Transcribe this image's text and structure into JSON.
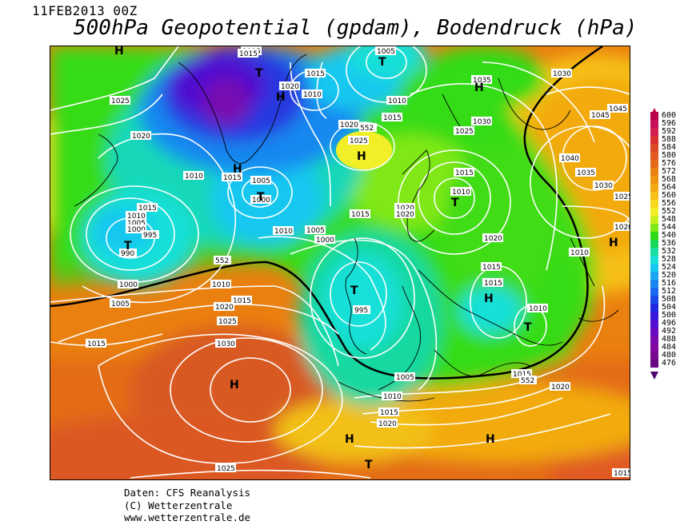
{
  "header": {
    "datetime": "11FEB2013 00Z",
    "title": "500hPa Geopotential (gpdam), Bodendruck (hPa)"
  },
  "credits": {
    "line1": "Daten: CFS Reanalysis",
    "line2": "(C) Wetterzentrale",
    "line3": "www.wetterzentrale.de"
  },
  "legend": {
    "levels": [
      {
        "value": "600",
        "color": "#b8004a"
      },
      {
        "value": "596",
        "color": "#c8105a"
      },
      {
        "value": "592",
        "color": "#d02050"
      },
      {
        "value": "588",
        "color": "#d83030"
      },
      {
        "value": "584",
        "color": "#dc4828"
      },
      {
        "value": "580",
        "color": "#e05a20"
      },
      {
        "value": "576",
        "color": "#e46c18"
      },
      {
        "value": "572",
        "color": "#ea8010"
      },
      {
        "value": "568",
        "color": "#ee9410"
      },
      {
        "value": "564",
        "color": "#f2aa10"
      },
      {
        "value": "560",
        "color": "#f6c018"
      },
      {
        "value": "556",
        "color": "#f6d820"
      },
      {
        "value": "552",
        "color": "#f2ee28"
      },
      {
        "value": "548",
        "color": "#c8f020"
      },
      {
        "value": "544",
        "color": "#80e818"
      },
      {
        "value": "540",
        "color": "#30dc18"
      },
      {
        "value": "536",
        "color": "#18d858"
      },
      {
        "value": "532",
        "color": "#18e0a0"
      },
      {
        "value": "528",
        "color": "#18e0d8"
      },
      {
        "value": "524",
        "color": "#18c8f0"
      },
      {
        "value": "520",
        "color": "#18a8f0"
      },
      {
        "value": "516",
        "color": "#1888f0"
      },
      {
        "value": "512",
        "color": "#1868f0"
      },
      {
        "value": "508",
        "color": "#1848e8"
      },
      {
        "value": "504",
        "color": "#2028e0"
      },
      {
        "value": "500",
        "color": "#3818d8"
      },
      {
        "value": "496",
        "color": "#5010d0"
      },
      {
        "value": "492",
        "color": "#6808c0"
      },
      {
        "value": "488",
        "color": "#7808b0"
      },
      {
        "value": "484",
        "color": "#8008a0"
      },
      {
        "value": "480",
        "color": "#780890"
      },
      {
        "value": "476",
        "color": "#680880"
      }
    ]
  },
  "map": {
    "pressure_systems": [
      {
        "type": "H",
        "name": "high-label"
      },
      {
        "type": "T",
        "name": "low-label"
      }
    ],
    "isobar_labels": [
      "1015",
      "1015",
      "1005",
      "1025",
      "1020",
      "1010",
      "1010",
      "1015",
      "1000",
      "995",
      "990",
      "1000",
      "1005",
      "1010",
      "1015",
      "1020",
      "1025",
      "1030",
      "1025",
      "1020",
      "1015",
      "1010",
      "1005",
      "1000",
      "995",
      "1010",
      "1015",
      "1020",
      "1025",
      "1030",
      "1035",
      "1040",
      "1045",
      "1030",
      "1020",
      "1015",
      "1010",
      "1020",
      "1015",
      "1010",
      "1020",
      "1015",
      "1010",
      "1005",
      "1000",
      "1010",
      "1015",
      "1020",
      "1025"
    ],
    "contour_label": "552"
  }
}
